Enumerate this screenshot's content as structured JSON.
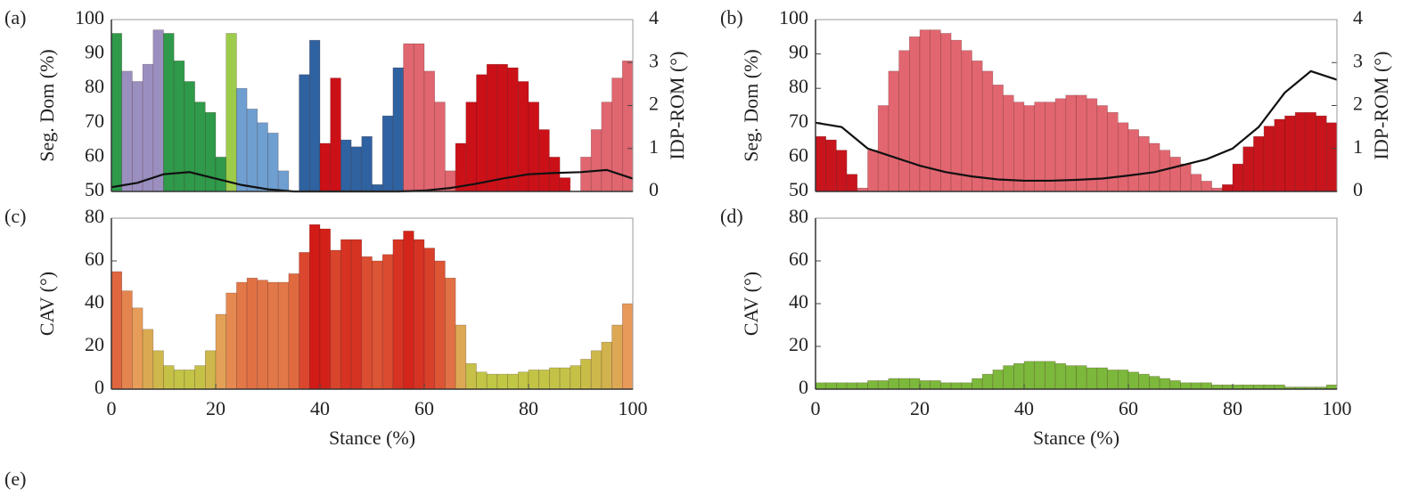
{
  "chart_data": [
    {
      "type": "bar",
      "panel_label": "(a)",
      "ylabel": "Seg. Dom (%)",
      "y2label": "IDP-ROM (°)",
      "x": [
        1,
        3,
        5,
        7,
        9,
        11,
        13,
        15,
        17,
        19,
        21,
        23,
        25,
        27,
        29,
        31,
        33,
        35,
        37,
        39,
        41,
        43,
        45,
        47,
        49,
        51,
        53,
        55,
        57,
        59,
        61,
        63,
        65,
        67,
        69,
        71,
        73,
        75,
        77,
        79,
        81,
        83,
        85,
        87,
        89,
        91,
        93,
        95,
        97,
        99
      ],
      "values": [
        96,
        85,
        82,
        87,
        97,
        96,
        88,
        82,
        76,
        73,
        60,
        96,
        80,
        74,
        70,
        67,
        56,
        50,
        84,
        94,
        64,
        83,
        65,
        63,
        66,
        52,
        72,
        86,
        93,
        93,
        85,
        76,
        56,
        64,
        76,
        84,
        87,
        87,
        86,
        82,
        76,
        68,
        60,
        54,
        50,
        60,
        68,
        76,
        83,
        88
      ],
      "colors": [
        "#2e9a4a",
        "#9b8fc0",
        "#9b8fc0",
        "#9b8fc0",
        "#9b8fc0",
        "#2e9a4a",
        "#2e9a4a",
        "#2e9a4a",
        "#2e9a4a",
        "#2e9a4a",
        "#2e9a4a",
        "#9ccc4a",
        "#6e9fd0",
        "#6e9fd0",
        "#6e9fd0",
        "#6e9fd0",
        "#6e9fd0",
        "#6e9fd0",
        "#2f62a0",
        "#2f62a0",
        "#cc1018",
        "#cc1018",
        "#2f62a0",
        "#2f62a0",
        "#2f62a0",
        "#2f62a0",
        "#2f62a0",
        "#2f62a0",
        "#e06670",
        "#e06670",
        "#e06670",
        "#e06670",
        "#e06670",
        "#cc1018",
        "#cc1018",
        "#cc1018",
        "#cc1018",
        "#cc1018",
        "#cc1018",
        "#cc1018",
        "#cc1018",
        "#cc1018",
        "#cc1018",
        "#cc1018",
        "#cc1018",
        "#e06670",
        "#e06670",
        "#e06670",
        "#e06670",
        "#e06670"
      ],
      "xlim": [
        0,
        100
      ],
      "ylim": [
        50,
        100
      ],
      "yticks": [
        50,
        60,
        70,
        80,
        90,
        100
      ],
      "y2lim": [
        0,
        4
      ],
      "y2ticks": [
        0,
        1,
        2,
        3,
        4
      ],
      "line": {
        "axis": "y2",
        "color": "#111111",
        "x": [
          0,
          5,
          10,
          15,
          20,
          25,
          30,
          35,
          40,
          45,
          50,
          55,
          60,
          65,
          70,
          75,
          80,
          85,
          90,
          95,
          100
        ],
        "values": [
          0.1,
          0.2,
          0.4,
          0.45,
          0.3,
          0.15,
          0.05,
          0,
          0,
          0,
          0,
          0,
          0.02,
          0.08,
          0.18,
          0.3,
          0.4,
          0.43,
          0.45,
          0.5,
          0.3
        ]
      }
    },
    {
      "type": "bar",
      "panel_label": "(b)",
      "ylabel": "Seg. Dom (%)",
      "y2label": "IDP-ROM (°)",
      "x": [
        1,
        3,
        5,
        7,
        9,
        11,
        13,
        15,
        17,
        19,
        21,
        23,
        25,
        27,
        29,
        31,
        33,
        35,
        37,
        39,
        41,
        43,
        45,
        47,
        49,
        51,
        53,
        55,
        57,
        59,
        61,
        63,
        65,
        67,
        69,
        71,
        73,
        75,
        77,
        79,
        81,
        83,
        85,
        87,
        89,
        91,
        93,
        95,
        97,
        99
      ],
      "values": [
        66,
        65,
        62,
        55,
        51,
        62,
        75,
        85,
        91,
        95,
        97,
        97,
        96,
        94,
        91,
        88,
        85,
        81,
        78,
        76,
        75,
        76,
        76,
        77,
        78,
        78,
        77,
        75,
        73,
        70,
        68,
        66,
        64,
        62,
        60,
        58,
        55,
        53,
        51,
        52,
        58,
        63,
        66,
        69,
        71,
        72,
        73,
        73,
        72,
        70
      ],
      "colors": [
        "#c8141c",
        "#c8141c",
        "#c8141c",
        "#c8141c",
        "#e26670",
        "#e26670",
        "#e26670",
        "#e26670",
        "#e26670",
        "#e26670",
        "#e26670",
        "#e26670",
        "#e26670",
        "#e26670",
        "#e26670",
        "#e26670",
        "#e26670",
        "#e26670",
        "#e26670",
        "#e26670",
        "#e26670",
        "#e26670",
        "#e26670",
        "#e26670",
        "#e26670",
        "#e26670",
        "#e26670",
        "#e26670",
        "#e26670",
        "#e26670",
        "#e26670",
        "#e26670",
        "#e26670",
        "#e26670",
        "#e26670",
        "#e26670",
        "#e26670",
        "#e26670",
        "#e26670",
        "#c8141c",
        "#c8141c",
        "#c8141c",
        "#c8141c",
        "#c8141c",
        "#c8141c",
        "#c8141c",
        "#c8141c",
        "#c8141c",
        "#c8141c",
        "#c8141c"
      ],
      "xlim": [
        0,
        100
      ],
      "ylim": [
        50,
        100
      ],
      "yticks": [
        50,
        60,
        70,
        80,
        90,
        100
      ],
      "y2lim": [
        0,
        4
      ],
      "y2ticks": [
        0,
        1,
        2,
        3,
        4
      ],
      "line": {
        "axis": "y2",
        "color": "#111111",
        "x": [
          0,
          5,
          10,
          15,
          20,
          25,
          30,
          35,
          40,
          45,
          50,
          55,
          60,
          65,
          70,
          75,
          80,
          85,
          90,
          95,
          100
        ],
        "values": [
          1.6,
          1.5,
          1.0,
          0.8,
          0.6,
          0.45,
          0.35,
          0.28,
          0.25,
          0.25,
          0.27,
          0.3,
          0.37,
          0.45,
          0.6,
          0.75,
          1.0,
          1.5,
          2.3,
          2.8,
          2.6
        ]
      }
    },
    {
      "type": "bar",
      "panel_label": "(c)",
      "ylabel": "CAV (°)",
      "xlabel": "Stance (%)",
      "x": [
        1,
        3,
        5,
        7,
        9,
        11,
        13,
        15,
        17,
        19,
        21,
        23,
        25,
        27,
        29,
        31,
        33,
        35,
        37,
        39,
        41,
        43,
        45,
        47,
        49,
        51,
        53,
        55,
        57,
        59,
        61,
        63,
        65,
        67,
        69,
        71,
        73,
        75,
        77,
        79,
        81,
        83,
        85,
        87,
        89,
        91,
        93,
        95,
        97,
        99
      ],
      "values": [
        55,
        46,
        38,
        28,
        18,
        11,
        9,
        9,
        11,
        18,
        35,
        45,
        50,
        52,
        51,
        50,
        50,
        54,
        64,
        77,
        75,
        65,
        70,
        70,
        62,
        60,
        63,
        70,
        74,
        70,
        66,
        60,
        52,
        30,
        12,
        8,
        7,
        7,
        7,
        8,
        9,
        9,
        10,
        10,
        11,
        14,
        18,
        22,
        30,
        40
      ],
      "colormap": [
        "#b8d040",
        "#e89a5a",
        "#d01010"
      ],
      "xlim": [
        0,
        100
      ],
      "xticks": [
        0,
        20,
        40,
        60,
        80,
        100
      ],
      "ylim": [
        0,
        80
      ],
      "yticks": [
        0,
        20,
        40,
        60,
        80
      ]
    },
    {
      "type": "bar",
      "panel_label": "(d)",
      "ylabel": "CAV (°)",
      "xlabel": "Stance (%)",
      "x": [
        1,
        3,
        5,
        7,
        9,
        11,
        13,
        15,
        17,
        19,
        21,
        23,
        25,
        27,
        29,
        31,
        33,
        35,
        37,
        39,
        41,
        43,
        45,
        47,
        49,
        51,
        53,
        55,
        57,
        59,
        61,
        63,
        65,
        67,
        69,
        71,
        73,
        75,
        77,
        79,
        81,
        83,
        85,
        87,
        89,
        91,
        93,
        95,
        97,
        99
      ],
      "values": [
        3,
        3,
        3,
        3,
        3,
        4,
        4,
        5,
        5,
        5,
        4,
        4,
        3,
        3,
        3,
        5,
        7,
        9,
        11,
        12,
        13,
        13,
        13,
        12,
        11,
        11,
        10,
        10,
        9,
        9,
        8,
        7,
        6,
        5,
        4,
        3,
        3,
        3,
        2,
        2,
        2,
        2,
        2,
        2,
        2,
        1,
        1,
        1,
        1,
        2
      ],
      "color": "#7cb83c",
      "xlim": [
        0,
        100
      ],
      "xticks": [
        0,
        20,
        40,
        60,
        80,
        100
      ],
      "ylim": [
        0,
        80
      ],
      "yticks": [
        0,
        20,
        40,
        60,
        80
      ]
    }
  ],
  "panel_e_label": "(e)"
}
